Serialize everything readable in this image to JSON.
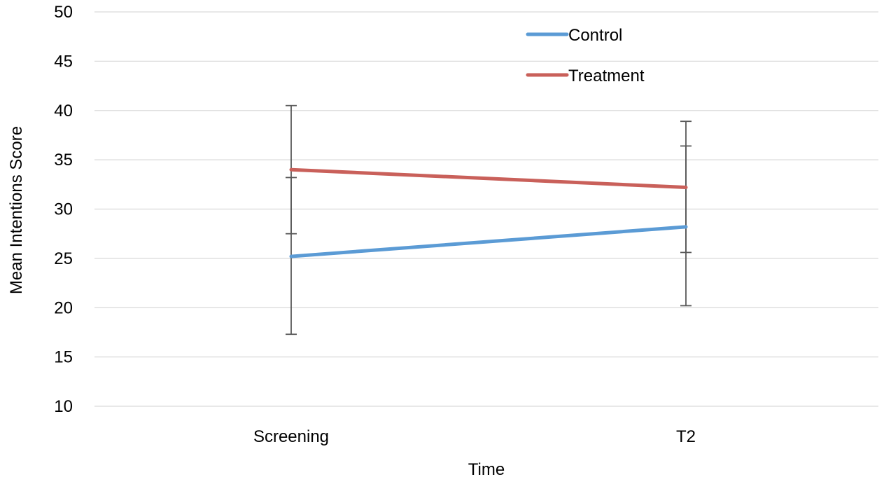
{
  "chart_data": {
    "type": "line",
    "title": "",
    "xlabel": "Time",
    "ylabel": "Mean Intentions Score",
    "categories": [
      "Screening",
      "T2"
    ],
    "ylim": [
      10,
      50
    ],
    "y_ticks": [
      10,
      15,
      20,
      25,
      30,
      35,
      40,
      45,
      50
    ],
    "grid": true,
    "legend_position": "top-right",
    "series": [
      {
        "name": "Control",
        "color": "#5B9BD5",
        "values": [
          25.2,
          28.2
        ],
        "error_low": [
          17.3,
          20.2
        ],
        "error_high": [
          33.2,
          36.4
        ]
      },
      {
        "name": "Treatment",
        "color": "#C9605A",
        "values": [
          34.0,
          32.2
        ],
        "error_low": [
          27.5,
          25.6
        ],
        "error_high": [
          40.5,
          38.9
        ]
      }
    ],
    "error_bar_color": "#595959",
    "gridline_color": "#D9D9D9"
  }
}
